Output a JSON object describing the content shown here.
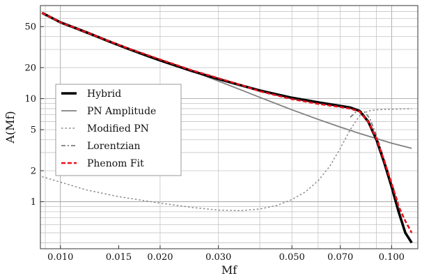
{
  "chart_data": {
    "type": "line",
    "title": "",
    "xlabel": "Mf",
    "ylabel": "A(Mf)",
    "xscale": "log",
    "yscale": "log",
    "xlim": [
      0.0087,
      0.12
    ],
    "ylim": [
      0.35,
      80
    ],
    "grid": true,
    "legend_position": "center-left",
    "x_ticks": [
      {
        "value": 0.01,
        "label": "0.010"
      },
      {
        "value": 0.015,
        "label": "0.015"
      },
      {
        "value": 0.02,
        "label": "0.020"
      },
      {
        "value": 0.03,
        "label": "0.030"
      },
      {
        "value": 0.05,
        "label": "0.050"
      },
      {
        "value": 0.07,
        "label": "0.070"
      },
      {
        "value": 0.1,
        "label": "0.100"
      }
    ],
    "y_ticks": [
      {
        "value": 1,
        "label": "1"
      },
      {
        "value": 2,
        "label": "2"
      },
      {
        "value": 5,
        "label": "5"
      },
      {
        "value": 10,
        "label": "10"
      },
      {
        "value": 20,
        "label": "20"
      },
      {
        "value": 50,
        "label": "50"
      }
    ],
    "series": [
      {
        "name": "Hybrid",
        "color": "#000000",
        "style": "solid-thick",
        "points": [
          [
            0.0088,
            68
          ],
          [
            0.01,
            55
          ],
          [
            0.012,
            44
          ],
          [
            0.014,
            36
          ],
          [
            0.016,
            30.5
          ],
          [
            0.018,
            26.5
          ],
          [
            0.02,
            23.5
          ],
          [
            0.025,
            18.5
          ],
          [
            0.03,
            15.5
          ],
          [
            0.035,
            13.5
          ],
          [
            0.04,
            12.0
          ],
          [
            0.05,
            10.2
          ],
          [
            0.06,
            9.2
          ],
          [
            0.07,
            8.5
          ],
          [
            0.075,
            8.2
          ],
          [
            0.08,
            7.6
          ],
          [
            0.085,
            6.0
          ],
          [
            0.09,
            4.0
          ],
          [
            0.095,
            2.4
          ],
          [
            0.1,
            1.4
          ],
          [
            0.105,
            0.8
          ],
          [
            0.11,
            0.5
          ],
          [
            0.115,
            0.4
          ]
        ]
      },
      {
        "name": "PN Amplitude",
        "color": "#808080",
        "style": "solid",
        "points": [
          [
            0.0088,
            68
          ],
          [
            0.01,
            55
          ],
          [
            0.012,
            43
          ],
          [
            0.015,
            33
          ],
          [
            0.02,
            24
          ],
          [
            0.025,
            18.5
          ],
          [
            0.03,
            14.8
          ],
          [
            0.035,
            12.2
          ],
          [
            0.04,
            10.3
          ],
          [
            0.05,
            7.8
          ],
          [
            0.06,
            6.3
          ],
          [
            0.07,
            5.3
          ],
          [
            0.08,
            4.6
          ],
          [
            0.09,
            4.1
          ],
          [
            0.1,
            3.7
          ],
          [
            0.115,
            3.3
          ]
        ]
      },
      {
        "name": "Modified PN",
        "color": "#8a8a8a",
        "style": "dotted",
        "points": [
          [
            0.0088,
            1.75
          ],
          [
            0.01,
            1.55
          ],
          [
            0.012,
            1.3
          ],
          [
            0.015,
            1.12
          ],
          [
            0.02,
            0.97
          ],
          [
            0.025,
            0.88
          ],
          [
            0.03,
            0.83
          ],
          [
            0.035,
            0.82
          ],
          [
            0.04,
            0.85
          ],
          [
            0.045,
            0.92
          ],
          [
            0.05,
            1.05
          ],
          [
            0.055,
            1.25
          ],
          [
            0.06,
            1.6
          ],
          [
            0.065,
            2.2
          ],
          [
            0.07,
            3.3
          ],
          [
            0.075,
            5.0
          ],
          [
            0.08,
            6.8
          ],
          [
            0.085,
            7.6
          ],
          [
            0.09,
            7.8
          ],
          [
            0.1,
            7.9
          ],
          [
            0.115,
            8.0
          ]
        ]
      },
      {
        "name": "Lorentzian",
        "color": "#666666",
        "style": "dash-dot",
        "points": [
          [
            0.075,
            6.6
          ],
          [
            0.078,
            7.4
          ],
          [
            0.08,
            7.6
          ],
          [
            0.083,
            7.4
          ],
          [
            0.086,
            6.4
          ],
          [
            0.09,
            4.4
          ],
          [
            0.095,
            2.6
          ],
          [
            0.1,
            1.55
          ],
          [
            0.105,
            0.95
          ]
        ]
      },
      {
        "name": "Phenom Fit",
        "color": "#e8101a",
        "style": "dashed",
        "points": [
          [
            0.0088,
            68
          ],
          [
            0.01,
            55
          ],
          [
            0.012,
            44
          ],
          [
            0.014,
            36.2
          ],
          [
            0.016,
            30.8
          ],
          [
            0.018,
            27
          ],
          [
            0.02,
            24
          ],
          [
            0.025,
            18.8
          ],
          [
            0.03,
            15.8
          ],
          [
            0.035,
            13.6
          ],
          [
            0.04,
            11.8
          ],
          [
            0.05,
            9.9
          ],
          [
            0.06,
            8.9
          ],
          [
            0.07,
            8.3
          ],
          [
            0.075,
            8.0
          ],
          [
            0.08,
            7.5
          ],
          [
            0.085,
            6.0
          ],
          [
            0.09,
            4.1
          ],
          [
            0.095,
            2.5
          ],
          [
            0.1,
            1.5
          ],
          [
            0.105,
            0.9
          ],
          [
            0.11,
            0.65
          ],
          [
            0.115,
            0.5
          ]
        ]
      }
    ]
  }
}
